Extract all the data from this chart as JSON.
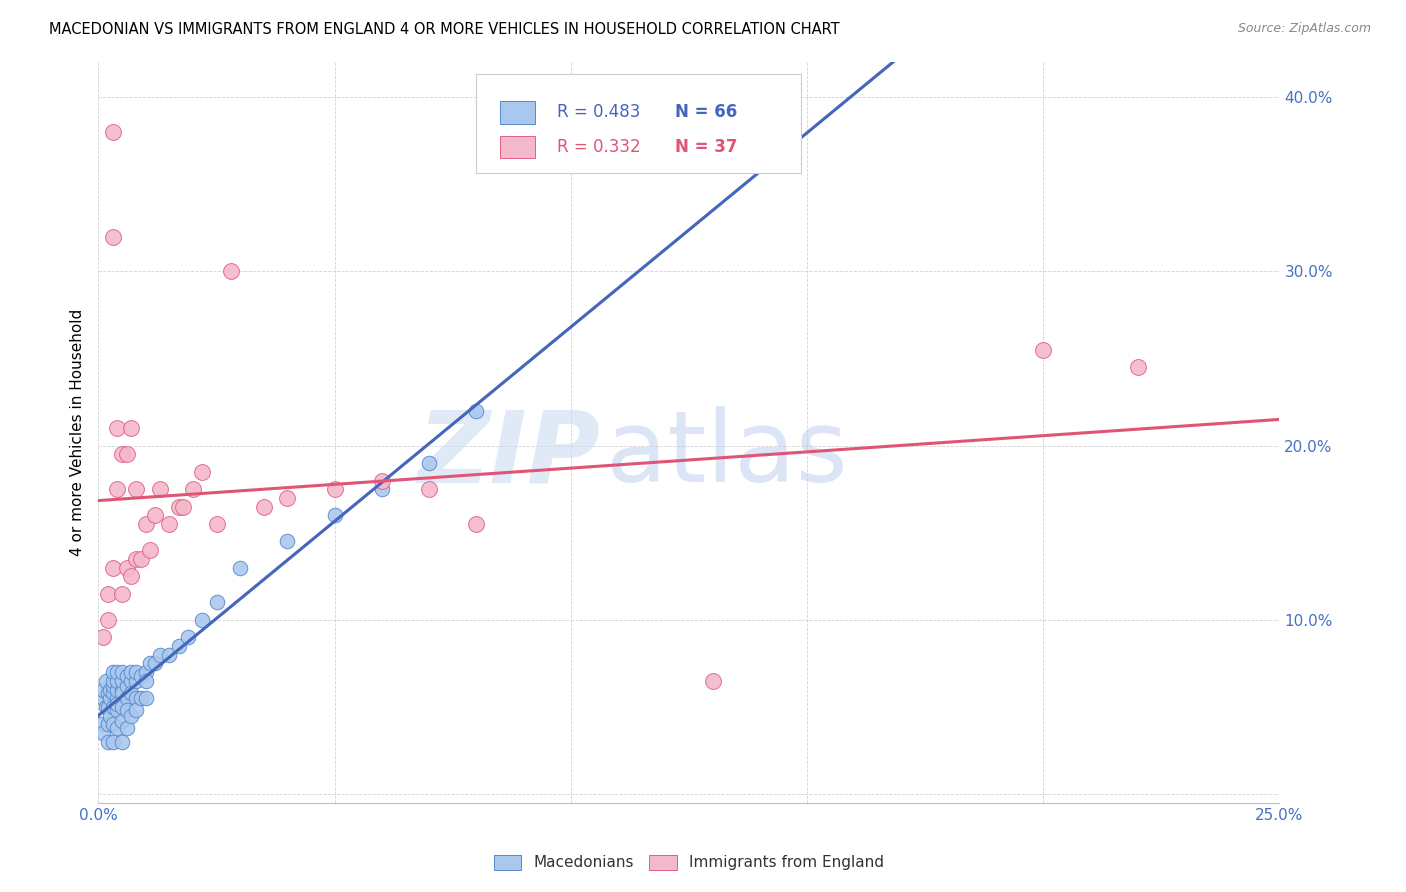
{
  "title": "MACEDONIAN VS IMMIGRANTS FROM ENGLAND 4 OR MORE VEHICLES IN HOUSEHOLD CORRELATION CHART",
  "source": "Source: ZipAtlas.com",
  "ylabel": "4 or more Vehicles in Household",
  "xlim": [
    0.0,
    0.25
  ],
  "ylim": [
    -0.005,
    0.42
  ],
  "xticks": [
    0.0,
    0.05,
    0.1,
    0.15,
    0.2,
    0.25
  ],
  "yticks": [
    0.0,
    0.1,
    0.2,
    0.3,
    0.4
  ],
  "right_yticks": [
    0.1,
    0.2,
    0.3,
    0.4
  ],
  "right_yticklabels": [
    "10.0%",
    "20.0%",
    "30.0%",
    "40.0%"
  ],
  "xticklabels": [
    "0.0%",
    "",
    "",
    "",
    "",
    "25.0%"
  ],
  "blue_R": 0.483,
  "blue_N": 66,
  "pink_R": 0.332,
  "pink_N": 37,
  "blue_scatter_color": "#aac8ee",
  "blue_scatter_edge": "#5588cc",
  "pink_scatter_color": "#f4b8cc",
  "pink_scatter_edge": "#e06080",
  "blue_line_color": "#4466bb",
  "pink_line_color": "#e05575",
  "dashed_line_color": "#8ab0dd",
  "macedonians_x": [
    0.0005,
    0.001,
    0.001,
    0.001,
    0.0015,
    0.0015,
    0.002,
    0.002,
    0.002,
    0.002,
    0.0025,
    0.0025,
    0.0025,
    0.003,
    0.003,
    0.003,
    0.003,
    0.003,
    0.003,
    0.003,
    0.004,
    0.004,
    0.004,
    0.004,
    0.004,
    0.004,
    0.004,
    0.005,
    0.005,
    0.005,
    0.005,
    0.005,
    0.005,
    0.005,
    0.006,
    0.006,
    0.006,
    0.006,
    0.006,
    0.007,
    0.007,
    0.007,
    0.007,
    0.008,
    0.008,
    0.008,
    0.008,
    0.009,
    0.009,
    0.01,
    0.01,
    0.01,
    0.011,
    0.012,
    0.013,
    0.015,
    0.017,
    0.019,
    0.022,
    0.025,
    0.03,
    0.04,
    0.05,
    0.06,
    0.07,
    0.08
  ],
  "macedonians_y": [
    0.04,
    0.055,
    0.06,
    0.035,
    0.05,
    0.065,
    0.05,
    0.058,
    0.04,
    0.03,
    0.055,
    0.06,
    0.045,
    0.05,
    0.058,
    0.062,
    0.065,
    0.07,
    0.04,
    0.03,
    0.055,
    0.06,
    0.065,
    0.07,
    0.048,
    0.052,
    0.038,
    0.06,
    0.065,
    0.07,
    0.058,
    0.05,
    0.042,
    0.03,
    0.062,
    0.068,
    0.055,
    0.048,
    0.038,
    0.065,
    0.07,
    0.058,
    0.045,
    0.065,
    0.07,
    0.055,
    0.048,
    0.068,
    0.055,
    0.07,
    0.065,
    0.055,
    0.075,
    0.075,
    0.08,
    0.08,
    0.085,
    0.09,
    0.1,
    0.11,
    0.13,
    0.145,
    0.16,
    0.175,
    0.19,
    0.22
  ],
  "england_x": [
    0.001,
    0.002,
    0.002,
    0.003,
    0.003,
    0.003,
    0.004,
    0.004,
    0.005,
    0.005,
    0.006,
    0.006,
    0.007,
    0.007,
    0.008,
    0.008,
    0.009,
    0.01,
    0.011,
    0.012,
    0.013,
    0.015,
    0.017,
    0.018,
    0.02,
    0.022,
    0.025,
    0.028,
    0.035,
    0.04,
    0.05,
    0.06,
    0.07,
    0.08,
    0.13,
    0.2,
    0.22
  ],
  "england_y": [
    0.09,
    0.1,
    0.115,
    0.38,
    0.32,
    0.13,
    0.175,
    0.21,
    0.115,
    0.195,
    0.13,
    0.195,
    0.21,
    0.125,
    0.135,
    0.175,
    0.135,
    0.155,
    0.14,
    0.16,
    0.175,
    0.155,
    0.165,
    0.165,
    0.175,
    0.185,
    0.155,
    0.3,
    0.165,
    0.17,
    0.175,
    0.18,
    0.175,
    0.155,
    0.065,
    0.255,
    0.245
  ]
}
